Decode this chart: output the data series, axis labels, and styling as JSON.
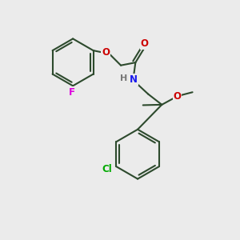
{
  "background_color": "#ebebeb",
  "bond_color": "#2d4a2d",
  "atom_colors": {
    "O": "#cc0000",
    "N": "#1a1aee",
    "F": "#dd00dd",
    "Cl": "#00aa00",
    "H": "#777777",
    "C": "#2d4a2d"
  },
  "figsize": [
    3.0,
    3.0
  ],
  "dpi": 100
}
